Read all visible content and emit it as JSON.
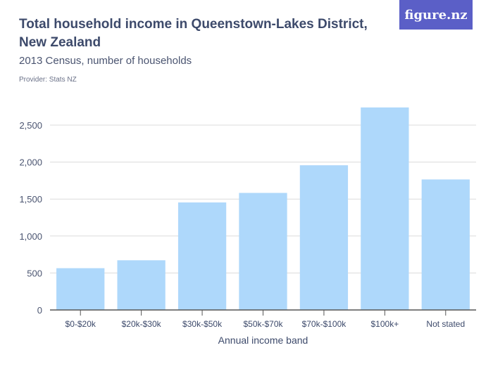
{
  "header": {
    "title": "Total household income in Queenstown-Lakes District, New Zealand",
    "subtitle": "2013 Census, number of households",
    "provider": "Provider: Stats NZ",
    "logo": "figure.nz"
  },
  "chart_data": {
    "type": "bar",
    "title": "Total household income in Queenstown-Lakes District, New Zealand",
    "subtitle": "2013 Census, number of households",
    "xlabel": "Annual income band",
    "ylabel": "",
    "categories": [
      "$0-$20k",
      "$20k-$30k",
      "$30k-$50k",
      "$50k-$70k",
      "$70k-$100k",
      "$100k+",
      "Not stated"
    ],
    "values": [
      565,
      672,
      1454,
      1583,
      1957,
      2739,
      1765
    ],
    "ylim": [
      0,
      2800
    ],
    "yticks": [
      0,
      500,
      1000,
      1500,
      2000,
      2500
    ],
    "ytick_labels": [
      "0",
      "500",
      "1,000",
      "1,500",
      "2,000",
      "2,500"
    ],
    "grid": true,
    "bar_color": "#aed8fb"
  }
}
